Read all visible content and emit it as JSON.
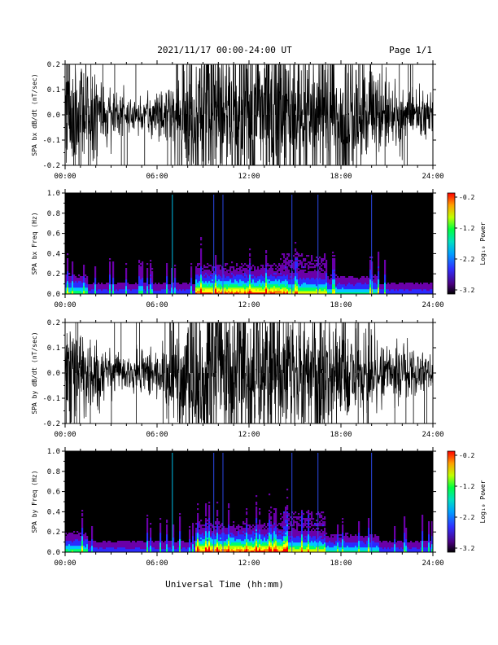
{
  "header": {
    "title": "2021/11/17  00:00-24:00 UT",
    "page": "Page 1/1"
  },
  "footer": {
    "xlabel": "Universal Time (hh:mm)"
  },
  "colors": {
    "background": "#ffffff",
    "trace": "#000000",
    "spectrogram_bg": "#000000",
    "colormap": [
      "#2a0033",
      "#6a00a8",
      "#2b2bff",
      "#00c8ff",
      "#00ff6a",
      "#b4ff00",
      "#ffff00",
      "#ff8000",
      "#ff0000"
    ]
  },
  "chart_data": [
    {
      "type": "line",
      "ylabel": "SPA bx dB/dt (nT/sec)",
      "xlim": [
        0,
        24
      ],
      "ylim": [
        -0.2,
        0.2
      ],
      "yticks": [
        0.2,
        0.1,
        0.0,
        -0.1,
        -0.2
      ],
      "ytick_labels": [
        "0.2",
        "0.1",
        "0.0",
        "-0.1",
        "-0.2"
      ],
      "xtick_labels": [
        "00:00",
        "06:00",
        "12:00",
        "18:00",
        "24:00"
      ],
      "envelope": {
        "hour": [
          0,
          1,
          2,
          3,
          4,
          5,
          6,
          7,
          7.5,
          8,
          9,
          10,
          11,
          12,
          13,
          14,
          15,
          16,
          17,
          18,
          19,
          20,
          21,
          22,
          23,
          24
        ],
        "amplitude": [
          0.2,
          0.2,
          0.13,
          0.08,
          0.06,
          0.06,
          0.08,
          0.12,
          0.14,
          0.22,
          0.25,
          0.25,
          0.25,
          0.25,
          0.25,
          0.25,
          0.22,
          0.2,
          0.25,
          0.22,
          0.18,
          0.15,
          0.12,
          0.1,
          0.08,
          0.07
        ]
      }
    },
    {
      "type": "heatmap",
      "ylabel": "SPA bx Freq (Hz)",
      "xlim": [
        0,
        24
      ],
      "ylim": [
        0.0,
        1.0
      ],
      "ytick_labels": [
        "1.0",
        "0.8",
        "0.6",
        "0.4",
        "0.2",
        "0.0"
      ],
      "xtick_labels": [
        "00:00",
        "06:00",
        "12:00",
        "18:00",
        "24:00"
      ],
      "colorbar": {
        "label": "Log₁₀ Power",
        "range": [
          -3.2,
          -0.2
        ],
        "tick_labels": [
          "-0.2",
          "-1.2",
          "-2.2",
          "-3.2"
        ]
      },
      "bright_lines_hour": [
        7.0,
        9.7,
        10.3,
        14.8,
        16.5,
        20.0
      ]
    },
    {
      "type": "line",
      "ylabel": "SPA by dB/dt (nT/sec)",
      "xlim": [
        0,
        24
      ],
      "ylim": [
        -0.2,
        0.2
      ],
      "yticks": [
        0.2,
        0.1,
        0.0,
        -0.1,
        -0.2
      ],
      "ytick_labels": [
        "0.2",
        "0.1",
        "0.0",
        "-0.1",
        "-0.2"
      ],
      "xtick_labels": [
        "00:00",
        "06:00",
        "12:00",
        "18:00",
        "24:00"
      ],
      "envelope": {
        "hour": [
          0,
          1,
          2,
          3,
          4,
          5,
          6,
          7,
          7.5,
          8,
          9,
          10,
          11,
          12,
          13,
          14,
          15,
          16,
          17,
          18,
          19,
          20,
          21,
          22,
          23,
          24
        ],
        "amplitude": [
          0.18,
          0.15,
          0.11,
          0.08,
          0.06,
          0.07,
          0.09,
          0.14,
          0.18,
          0.24,
          0.25,
          0.25,
          0.25,
          0.25,
          0.25,
          0.24,
          0.2,
          0.18,
          0.22,
          0.18,
          0.14,
          0.12,
          0.1,
          0.08,
          0.07,
          0.06
        ]
      }
    },
    {
      "type": "heatmap",
      "ylabel": "SPA by Freq (Hz)",
      "xlim": [
        0,
        24
      ],
      "ylim": [
        0.0,
        1.0
      ],
      "ytick_labels": [
        "1.0",
        "0.8",
        "0.6",
        "0.4",
        "0.2",
        "0.0"
      ],
      "xtick_labels": [
        "00:00",
        "06:00",
        "12:00",
        "18:00",
        "24:00"
      ],
      "colorbar": {
        "label": "Log₁₀ Power",
        "range": [
          -3.2,
          -0.2
        ],
        "tick_labels": [
          "-0.2",
          "-1.2",
          "-2.2",
          "-3.2"
        ]
      },
      "bright_lines_hour": [
        7.0,
        9.7,
        10.3,
        14.8,
        16.5,
        20.0
      ]
    }
  ]
}
